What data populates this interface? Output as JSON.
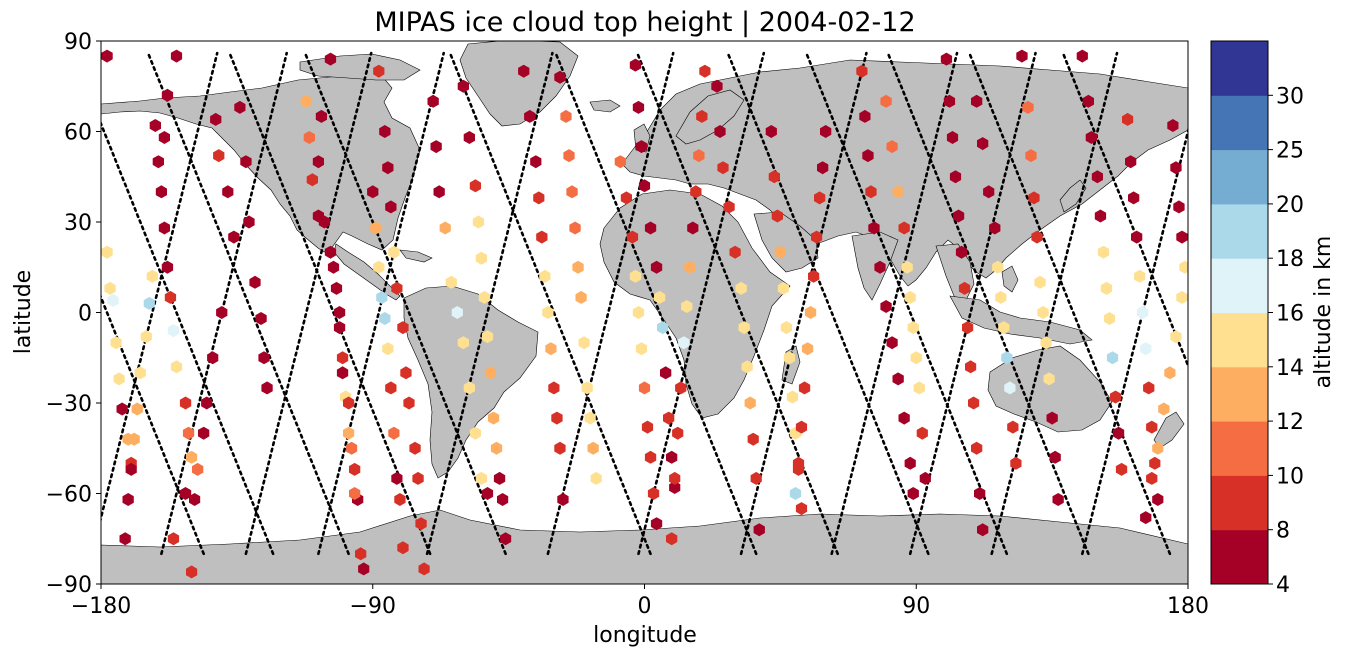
{
  "chart_data": {
    "type": "scatter",
    "title": "MIPAS ice cloud top height | 2004-02-12",
    "xlabel": "longitude",
    "ylabel": "latitude",
    "xlim": [
      -180,
      180
    ],
    "ylim": [
      -90,
      90
    ],
    "xticks": [
      -180,
      -90,
      0,
      90,
      180
    ],
    "yticks": [
      -90,
      -60,
      -30,
      0,
      30,
      60,
      90
    ],
    "xtick_labels": [
      "−180",
      "−90",
      "0",
      "90",
      "180"
    ],
    "ytick_labels": [
      "−90",
      "−60",
      "−30",
      "0",
      "30",
      "60",
      "90"
    ],
    "grid": false,
    "colorbar": {
      "label": "altitude in km",
      "boundaries": [
        4,
        8,
        10,
        12,
        14,
        16,
        18,
        20,
        25,
        30
      ],
      "tick_labels": [
        "4",
        "8",
        "10",
        "12",
        "14",
        "16",
        "18",
        "20",
        "25",
        "30"
      ],
      "colors": [
        "#a50026",
        "#d73027",
        "#f46d43",
        "#fdae61",
        "#fee090",
        "#e0f3f8",
        "#abd9e9",
        "#74add1",
        "#4575b4",
        "#313695"
      ]
    },
    "land_color": "#bfbfbf",
    "track_marker_color": "#000000",
    "orbit_tracks": [
      {
        "lon0": -178,
        "slope": -0.4
      },
      {
        "lon0": -163,
        "slope": 0.25
      },
      {
        "lon0": -155,
        "slope": -0.4
      },
      {
        "lon0": -140,
        "slope": 0.25
      },
      {
        "lon0": -130,
        "slope": -0.4
      },
      {
        "lon0": -112,
        "slope": 0.25
      },
      {
        "lon0": -103,
        "slope": -0.4
      },
      {
        "lon0": -88,
        "slope": 0.25
      },
      {
        "lon0": -78,
        "slope": -0.4
      },
      {
        "lon0": -52,
        "slope": 0.25
      },
      {
        "lon0": -30,
        "slope": -0.4
      },
      {
        "lon0": -12,
        "slope": 0.25
      },
      {
        "lon0": 5,
        "slope": -0.4
      },
      {
        "lon0": 18,
        "slope": 0.25
      },
      {
        "lon0": 32,
        "slope": -0.4
      },
      {
        "lon0": 52,
        "slope": 0.25
      },
      {
        "lon0": 62,
        "slope": -0.4
      },
      {
        "lon0": 82,
        "slope": 0.25
      },
      {
        "lon0": 88,
        "slope": -0.4
      },
      {
        "lon0": 108,
        "slope": 0.25
      },
      {
        "lon0": 115,
        "slope": -0.4
      },
      {
        "lon0": 135,
        "slope": 0.25
      },
      {
        "lon0": 142,
        "slope": -0.4
      },
      {
        "lon0": 165,
        "slope": 0.25
      },
      {
        "lon0": 173,
        "slope": -0.4
      }
    ],
    "points": [
      [
        -178,
        85,
        6
      ],
      [
        -178,
        20,
        15
      ],
      [
        -177,
        8,
        15
      ],
      [
        -176,
        4,
        17
      ],
      [
        -175,
        -10,
        15
      ],
      [
        -174,
        -22,
        15
      ],
      [
        -173,
        -32,
        6
      ],
      [
        -171,
        -42,
        13
      ],
      [
        -170,
        -50,
        9
      ],
      [
        -171,
        -62,
        6
      ],
      [
        -172,
        -75,
        6
      ],
      [
        -162,
        62,
        6
      ],
      [
        -161,
        50,
        6
      ],
      [
        -163,
        12,
        15
      ],
      [
        -164,
        3,
        18
      ],
      [
        -165,
        -8,
        14
      ],
      [
        -167,
        -20,
        14
      ],
      [
        -168,
        -32,
        13
      ],
      [
        -169,
        -42,
        13
      ],
      [
        -170,
        -52,
        6
      ],
      [
        -155,
        85,
        6
      ],
      [
        -158,
        72,
        6
      ],
      [
        -159,
        58,
        6
      ],
      [
        -160,
        40,
        6
      ],
      [
        -159,
        28,
        6
      ],
      [
        -158,
        15,
        6
      ],
      [
        -157,
        5,
        8
      ],
      [
        -156,
        -6,
        17
      ],
      [
        -155,
        -18,
        15
      ],
      [
        -152,
        -30,
        9
      ],
      [
        -151,
        -40,
        10
      ],
      [
        -150,
        -48,
        12
      ],
      [
        -152,
        -60,
        6
      ],
      [
        -156,
        -75,
        8
      ],
      [
        -142,
        64,
        6
      ],
      [
        -141,
        52,
        8
      ],
      [
        -138,
        40,
        6
      ],
      [
        -136,
        25,
        6
      ],
      [
        -140,
        0,
        6
      ],
      [
        -143,
        -15,
        6
      ],
      [
        -145,
        -30,
        6
      ],
      [
        -146,
        -40,
        6
      ],
      [
        -148,
        -52,
        10
      ],
      [
        -149,
        -62,
        6
      ],
      [
        -150,
        -86,
        8
      ],
      [
        -134,
        68,
        6
      ],
      [
        -132,
        50,
        6
      ],
      [
        -131,
        30,
        6
      ],
      [
        -129,
        10,
        6
      ],
      [
        -127,
        -2,
        6
      ],
      [
        -126,
        -15,
        6
      ],
      [
        -125,
        -25,
        6
      ],
      [
        -112,
        70,
        13
      ],
      [
        -111,
        58,
        10
      ],
      [
        -110,
        44,
        8
      ],
      [
        -108,
        32,
        6
      ],
      [
        -104,
        20,
        6
      ],
      [
        -102,
        8,
        6
      ],
      [
        -101,
        -5,
        6
      ],
      [
        -100,
        -20,
        6
      ],
      [
        -99,
        -28,
        14
      ],
      [
        -98,
        -40,
        13
      ],
      [
        -96,
        -52,
        9
      ],
      [
        -95,
        -62,
        6
      ],
      [
        -94,
        -80,
        8
      ],
      [
        -93,
        -85,
        6
      ],
      [
        -104,
        84,
        6
      ],
      [
        -107,
        65,
        6
      ],
      [
        -108,
        50,
        6
      ],
      [
        -106,
        30,
        6
      ],
      [
        -103,
        15,
        6
      ],
      [
        -101,
        0,
        6
      ],
      [
        -100,
        -15,
        9
      ],
      [
        -98,
        -30,
        9
      ],
      [
        -97,
        -45,
        10
      ],
      [
        -96,
        -60,
        10
      ],
      [
        -88,
        80,
        8
      ],
      [
        -86,
        60,
        6
      ],
      [
        -85,
        48,
        6
      ],
      [
        -84,
        35,
        6
      ],
      [
        -83,
        20,
        14
      ],
      [
        -82,
        8,
        8
      ],
      [
        -80,
        -5,
        8
      ],
      [
        -79,
        -20,
        8
      ],
      [
        -78,
        -30,
        9
      ],
      [
        -76,
        -45,
        9
      ],
      [
        -75,
        -55,
        9
      ],
      [
        -74,
        -70,
        8
      ],
      [
        -73,
        -85,
        8
      ],
      [
        -90,
        40,
        6
      ],
      [
        -89,
        28,
        13
      ],
      [
        -88,
        15,
        15
      ],
      [
        -87,
        5,
        19
      ],
      [
        -86,
        -2,
        18
      ],
      [
        -85,
        -12,
        14
      ],
      [
        -84,
        -25,
        9
      ],
      [
        -83,
        -40,
        10
      ],
      [
        -82,
        -55,
        6
      ],
      [
        -81,
        -62,
        9
      ],
      [
        -80,
        -78,
        8
      ],
      [
        -60,
        75,
        6
      ],
      [
        -58,
        58,
        6
      ],
      [
        -56,
        42,
        8
      ],
      [
        -55,
        30,
        14
      ],
      [
        -54,
        18,
        15
      ],
      [
        -53,
        5,
        14
      ],
      [
        -52,
        -8,
        15
      ],
      [
        -51,
        -20,
        13
      ],
      [
        -50,
        -35,
        13
      ],
      [
        -49,
        -45,
        13
      ],
      [
        -48,
        -55,
        6
      ],
      [
        -47,
        -62,
        6
      ],
      [
        -46,
        -75,
        6
      ],
      [
        -70,
        70,
        6
      ],
      [
        -69,
        55,
        6
      ],
      [
        -68,
        40,
        6
      ],
      [
        -66,
        28,
        13
      ],
      [
        -64,
        10,
        15
      ],
      [
        -62,
        0,
        16
      ],
      [
        -60,
        -10,
        14
      ],
      [
        -58,
        -25,
        14
      ],
      [
        -56,
        -40,
        14
      ],
      [
        -54,
        -55,
        14
      ],
      [
        -52,
        -60,
        6
      ],
      [
        -40,
        80,
        6
      ],
      [
        -38,
        65,
        6
      ],
      [
        -36,
        50,
        6
      ],
      [
        -35,
        38,
        8
      ],
      [
        -34,
        25,
        9
      ],
      [
        -33,
        12,
        14
      ],
      [
        -32,
        0,
        14
      ],
      [
        -31,
        -12,
        12
      ],
      [
        -30,
        -25,
        9
      ],
      [
        -29,
        -35,
        9
      ],
      [
        -28,
        -45,
        9
      ],
      [
        -27,
        -62,
        6
      ],
      [
        -28,
        78,
        6
      ],
      [
        -26,
        65,
        10
      ],
      [
        -25,
        52,
        10
      ],
      [
        -24,
        40,
        10
      ],
      [
        -23,
        28,
        10
      ],
      [
        -22,
        15,
        13
      ],
      [
        -21,
        5,
        13
      ],
      [
        -20,
        -10,
        14
      ],
      [
        -19,
        -25,
        14
      ],
      [
        -18,
        -35,
        14
      ],
      [
        -17,
        -45,
        13
      ],
      [
        -16,
        -55,
        14
      ],
      [
        -8,
        50,
        10
      ],
      [
        -6,
        38,
        9
      ],
      [
        -4,
        25,
        9
      ],
      [
        -3,
        12,
        14
      ],
      [
        -2,
        0,
        14
      ],
      [
        -1,
        -12,
        14
      ],
      [
        0,
        -25,
        10
      ],
      [
        1,
        -38,
        9
      ],
      [
        2,
        -48,
        9
      ],
      [
        3,
        -60,
        9
      ],
      [
        4,
        -70,
        6
      ],
      [
        -3,
        82,
        6
      ],
      [
        -2,
        68,
        6
      ],
      [
        -1,
        55,
        6
      ],
      [
        0,
        42,
        6
      ],
      [
        2,
        28,
        6
      ],
      [
        4,
        15,
        6
      ],
      [
        5,
        5,
        14
      ],
      [
        6,
        -5,
        18
      ],
      [
        7,
        -20,
        6
      ],
      [
        8,
        -35,
        8
      ],
      [
        9,
        -48,
        6
      ],
      [
        10,
        -58,
        6
      ],
      [
        20,
        80,
        9
      ],
      [
        19,
        65,
        9
      ],
      [
        18,
        52,
        10
      ],
      [
        17,
        40,
        8
      ],
      [
        16,
        28,
        6
      ],
      [
        15,
        15,
        13
      ],
      [
        14,
        2,
        14
      ],
      [
        13,
        -10,
        17
      ],
      [
        12,
        -25,
        9
      ],
      [
        11,
        -40,
        9
      ],
      [
        10,
        -55,
        9
      ],
      [
        9,
        -75,
        8
      ],
      [
        24,
        75,
        6
      ],
      [
        25,
        60,
        6
      ],
      [
        26,
        48,
        8
      ],
      [
        28,
        35,
        8
      ],
      [
        30,
        20,
        8
      ],
      [
        32,
        8,
        15
      ],
      [
        33,
        -5,
        15
      ],
      [
        34,
        -18,
        15
      ],
      [
        35,
        -30,
        13
      ],
      [
        36,
        -42,
        9
      ],
      [
        37,
        -55,
        9
      ],
      [
        38,
        -72,
        6
      ],
      [
        42,
        60,
        6
      ],
      [
        43,
        45,
        9
      ],
      [
        44,
        32,
        9
      ],
      [
        45,
        20,
        13
      ],
      [
        46,
        8,
        15
      ],
      [
        47,
        -5,
        15
      ],
      [
        48,
        -15,
        14
      ],
      [
        49,
        -28,
        14
      ],
      [
        50,
        -40,
        14
      ],
      [
        51,
        -52,
        9
      ],
      [
        52,
        -65,
        9
      ],
      [
        60,
        60,
        6
      ],
      [
        59,
        48,
        6
      ],
      [
        58,
        38,
        9
      ],
      [
        57,
        25,
        9
      ],
      [
        56,
        12,
        9
      ],
      [
        55,
        0,
        13
      ],
      [
        54,
        -12,
        13
      ],
      [
        53,
        -25,
        9
      ],
      [
        52,
        -38,
        9
      ],
      [
        51,
        -50,
        9
      ],
      [
        50,
        -60,
        18
      ],
      [
        72,
        80,
        9
      ],
      [
        73,
        65,
        6
      ],
      [
        74,
        52,
        6
      ],
      [
        75,
        40,
        8
      ],
      [
        76,
        28,
        6
      ],
      [
        78,
        15,
        6
      ],
      [
        80,
        2,
        6
      ],
      [
        82,
        -10,
        6
      ],
      [
        84,
        -22,
        6
      ],
      [
        86,
        -35,
        6
      ],
      [
        88,
        -50,
        6
      ],
      [
        89,
        -60,
        6
      ],
      [
        80,
        70,
        10
      ],
      [
        82,
        55,
        10
      ],
      [
        84,
        40,
        13
      ],
      [
        86,
        28,
        9
      ],
      [
        87,
        15,
        15
      ],
      [
        88,
        5,
        14
      ],
      [
        89,
        -5,
        15
      ],
      [
        90,
        -15,
        15
      ],
      [
        91,
        -25,
        14
      ],
      [
        92,
        -40,
        9
      ],
      [
        93,
        -55,
        6
      ],
      [
        100,
        84,
        6
      ],
      [
        101,
        70,
        6
      ],
      [
        102,
        58,
        6
      ],
      [
        103,
        45,
        6
      ],
      [
        104,
        32,
        6
      ],
      [
        105,
        20,
        6
      ],
      [
        106,
        8,
        9
      ],
      [
        107,
        -5,
        9
      ],
      [
        108,
        -18,
        9
      ],
      [
        109,
        -30,
        9
      ],
      [
        110,
        -45,
        9
      ],
      [
        111,
        -60,
        6
      ],
      [
        112,
        -72,
        6
      ],
      [
        110,
        70,
        6
      ],
      [
        112,
        56,
        6
      ],
      [
        114,
        40,
        6
      ],
      [
        116,
        28,
        6
      ],
      [
        117,
        15,
        15
      ],
      [
        118,
        5,
        15
      ],
      [
        119,
        -5,
        15
      ],
      [
        120,
        -15,
        18
      ],
      [
        121,
        -25,
        17
      ],
      [
        122,
        -38,
        9
      ],
      [
        123,
        -50,
        9
      ],
      [
        125,
        85,
        6
      ],
      [
        127,
        68,
        10
      ],
      [
        128,
        52,
        10
      ],
      [
        129,
        38,
        9
      ],
      [
        130,
        25,
        8
      ],
      [
        131,
        10,
        15
      ],
      [
        132,
        0,
        14
      ],
      [
        133,
        -10,
        14
      ],
      [
        134,
        -22,
        14
      ],
      [
        135,
        -35,
        6
      ],
      [
        136,
        -48,
        6
      ],
      [
        137,
        -62,
        6
      ],
      [
        145,
        85,
        6
      ],
      [
        147,
        70,
        6
      ],
      [
        148,
        58,
        6
      ],
      [
        150,
        45,
        6
      ],
      [
        151,
        32,
        6
      ],
      [
        152,
        20,
        14
      ],
      [
        153,
        8,
        15
      ],
      [
        154,
        -2,
        14
      ],
      [
        155,
        -15,
        18
      ],
      [
        156,
        -28,
        9
      ],
      [
        157,
        -40,
        6
      ],
      [
        158,
        -52,
        9
      ],
      [
        160,
        64,
        9
      ],
      [
        161,
        50,
        6
      ],
      [
        162,
        38,
        6
      ],
      [
        163,
        25,
        6
      ],
      [
        164,
        12,
        15
      ],
      [
        165,
        0,
        17
      ],
      [
        166,
        -12,
        16
      ],
      [
        167,
        -25,
        9
      ],
      [
        168,
        -38,
        9
      ],
      [
        169,
        -50,
        9
      ],
      [
        170,
        -62,
        6
      ],
      [
        175,
        62,
        6
      ],
      [
        176,
        48,
        6
      ],
      [
        177,
        35,
        6
      ],
      [
        178,
        25,
        6
      ],
      [
        179,
        15,
        15
      ],
      [
        178,
        5,
        15
      ],
      [
        176,
        -8,
        15
      ],
      [
        174,
        -20,
        13
      ],
      [
        172,
        -32,
        12
      ],
      [
        170,
        -45,
        12
      ],
      [
        168,
        -55,
        9
      ],
      [
        166,
        -68,
        6
      ]
    ]
  }
}
